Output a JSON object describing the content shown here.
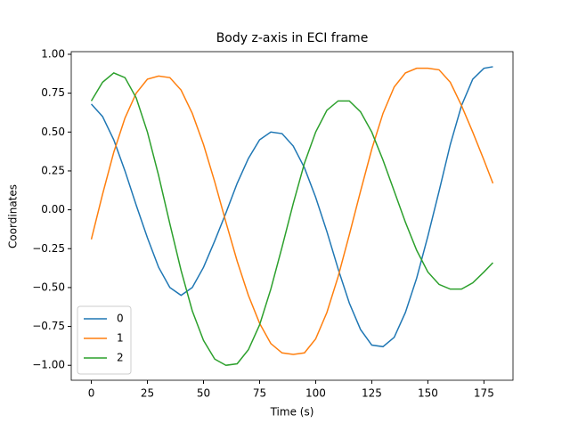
{
  "chart_data": {
    "type": "line",
    "title": "Body z-axis in ECI frame",
    "xlabel": "Time (s)",
    "ylabel": "Coordinates",
    "x": [
      0,
      5,
      10,
      15,
      20,
      25,
      30,
      35,
      40,
      45,
      50,
      55,
      60,
      65,
      70,
      75,
      80,
      85,
      90,
      95,
      100,
      105,
      110,
      115,
      120,
      125,
      130,
      135,
      140,
      145,
      150,
      155,
      160,
      165,
      170,
      175,
      179
    ],
    "series": [
      {
        "name": "0",
        "color": "#1f77b4",
        "values": [
          0.68,
          0.6,
          0.45,
          0.25,
          0.03,
          -0.18,
          -0.37,
          -0.5,
          -0.55,
          -0.5,
          -0.37,
          -0.2,
          -0.02,
          0.17,
          0.33,
          0.45,
          0.5,
          0.49,
          0.41,
          0.27,
          0.08,
          -0.14,
          -0.38,
          -0.6,
          -0.77,
          -0.87,
          -0.88,
          -0.82,
          -0.66,
          -0.44,
          -0.17,
          0.12,
          0.42,
          0.67,
          0.84,
          0.91,
          0.92
        ]
      },
      {
        "name": "1",
        "color": "#ff7f0e",
        "values": [
          -0.19,
          0.1,
          0.37,
          0.59,
          0.75,
          0.84,
          0.86,
          0.85,
          0.77,
          0.62,
          0.42,
          0.18,
          -0.08,
          -0.33,
          -0.55,
          -0.73,
          -0.86,
          -0.92,
          -0.93,
          -0.92,
          -0.83,
          -0.66,
          -0.43,
          -0.16,
          0.12,
          0.39,
          0.62,
          0.79,
          0.88,
          0.91,
          0.91,
          0.9,
          0.82,
          0.67,
          0.5,
          0.32,
          0.17
        ]
      },
      {
        "name": "2",
        "color": "#2ca02c",
        "values": [
          0.7,
          0.82,
          0.88,
          0.85,
          0.72,
          0.5,
          0.22,
          -0.09,
          -0.39,
          -0.65,
          -0.84,
          -0.96,
          -1.0,
          -0.99,
          -0.9,
          -0.74,
          -0.51,
          -0.24,
          0.04,
          0.3,
          0.5,
          0.64,
          0.7,
          0.7,
          0.63,
          0.5,
          0.32,
          0.12,
          -0.08,
          -0.26,
          -0.4,
          -0.48,
          -0.51,
          -0.51,
          -0.47,
          -0.4,
          -0.34
        ]
      }
    ],
    "xlim": [
      -8.95,
      187.95
    ],
    "xticks": [
      0,
      25,
      50,
      75,
      100,
      125,
      150,
      175
    ],
    "ylim": [
      -1.096,
      1.017
    ],
    "yticks": [
      {
        "value": -1,
        "label": "−1.00"
      },
      {
        "value": -0.75,
        "label": "−0.75"
      },
      {
        "value": -0.5,
        "label": "−0.50"
      },
      {
        "value": -0.25,
        "label": "−0.25"
      },
      {
        "value": 0,
        "label": "0.00"
      },
      {
        "value": 0.25,
        "label": "0.25"
      },
      {
        "value": 0.5,
        "label": "0.50"
      },
      {
        "value": 0.75,
        "label": "0.75"
      },
      {
        "value": 1,
        "label": "1.00"
      }
    ],
    "legend": "lower left"
  }
}
